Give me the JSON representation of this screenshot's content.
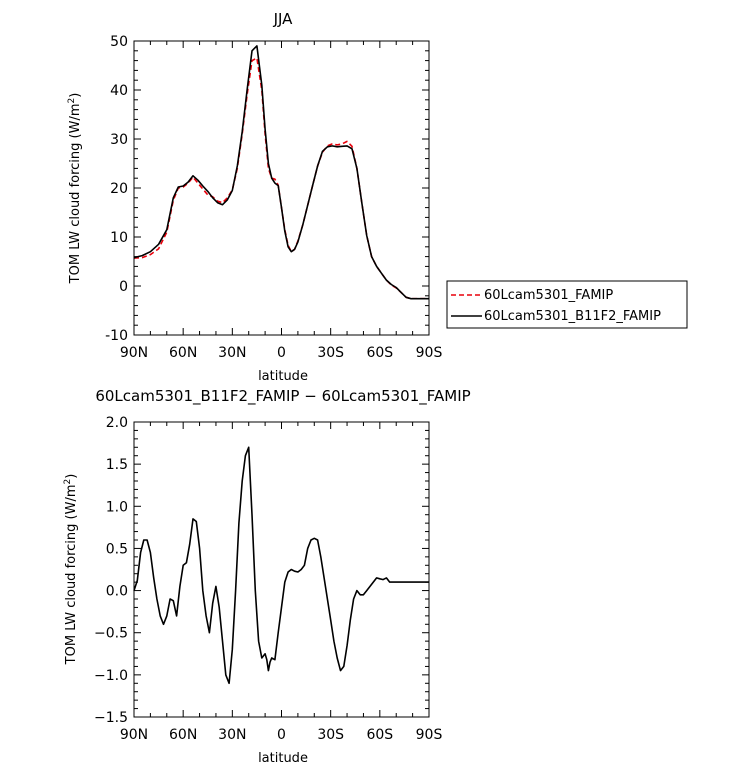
{
  "chart_data": [
    {
      "type": "line",
      "title": "JJA",
      "xlabel": "latitude",
      "ylabel": "TOM LW cloud forcing (W/m",
      "ylabel_sup": "2",
      "ylabel_close": ")",
      "xlim": [
        90,
        -90
      ],
      "ylim": [
        -10,
        50
      ],
      "yticks": [
        -10,
        0,
        10,
        20,
        30,
        40,
        50
      ],
      "xticks": [
        90,
        60,
        30,
        0,
        -30,
        -60,
        -90
      ],
      "xtick_labels": [
        "90N",
        "60N",
        "30N",
        "0",
        "30S",
        "60S",
        "90S"
      ],
      "grid": false,
      "legend_position": "right",
      "series": [
        {
          "name": "60Lcam5301_FAMIP",
          "color": "#e8000b",
          "dash": "dashed",
          "x": [
            90,
            85,
            80,
            75,
            70,
            66,
            63,
            60,
            57,
            54,
            51,
            48,
            45,
            42,
            39,
            36,
            33,
            30,
            27,
            24,
            21,
            18,
            15,
            12,
            10,
            8,
            6,
            4,
            2,
            0,
            -2,
            -4,
            -6,
            -8,
            -10,
            -13,
            -16,
            -19,
            -22,
            -25,
            -28,
            -31,
            -34,
            -37,
            -40,
            -43,
            -46,
            -49,
            -52,
            -55,
            -58,
            -61,
            -64,
            -67,
            -70,
            -73,
            -76,
            -79,
            -82,
            -85,
            -88,
            -90
          ],
          "y": [
            5.7,
            5.8,
            6.4,
            7.6,
            11.0,
            17.5,
            20.0,
            20.2,
            21.0,
            22.2,
            21.0,
            19.8,
            18.6,
            18.2,
            17.3,
            17.0,
            18.0,
            19.6,
            24.0,
            31.0,
            39.0,
            46.0,
            46.5,
            40.0,
            31.0,
            24.0,
            22.0,
            21.8,
            20.6,
            16.0,
            11.5,
            8.3,
            7.0,
            7.5,
            9.2,
            12.5,
            16.5,
            20.5,
            24.5,
            27.3,
            28.6,
            29.0,
            28.8,
            29.0,
            29.5,
            28.5,
            24.0,
            17.0,
            10.3,
            6.0,
            4.0,
            2.6,
            1.2,
            0.2,
            -0.4,
            -1.3,
            -2.3,
            -2.6,
            -2.6,
            -2.6,
            -2.6,
            -2.6
          ]
        },
        {
          "name": "60Lcam5301_B11F2_FAMIP",
          "color": "#000000",
          "dash": "solid",
          "x": [
            90,
            85,
            80,
            75,
            70,
            66,
            63,
            60,
            57,
            54,
            51,
            48,
            45,
            42,
            39,
            36,
            33,
            30,
            27,
            24,
            21,
            18,
            15,
            12,
            10,
            8,
            6,
            4,
            2,
            0,
            -2,
            -4,
            -6,
            -8,
            -10,
            -13,
            -16,
            -19,
            -22,
            -25,
            -28,
            -31,
            -34,
            -37,
            -40,
            -43,
            -46,
            -49,
            -52,
            -55,
            -58,
            -61,
            -64,
            -67,
            -70,
            -73,
            -76,
            -79,
            -82,
            -85,
            -88,
            -90
          ],
          "y": [
            5.8,
            6.2,
            7.0,
            8.5,
            11.5,
            18.0,
            20.2,
            20.4,
            21.2,
            22.5,
            21.6,
            20.4,
            19.3,
            18.0,
            17.0,
            16.6,
            17.6,
            19.5,
            24.5,
            31.5,
            40.0,
            48.0,
            49.0,
            41.0,
            32.0,
            25.0,
            22.0,
            21.0,
            20.5,
            16.0,
            11.2,
            8.0,
            7.0,
            7.5,
            9.0,
            12.5,
            16.5,
            20.5,
            24.5,
            27.5,
            28.4,
            28.6,
            28.4,
            28.5,
            28.6,
            28.0,
            24.0,
            17.0,
            10.3,
            6.0,
            4.0,
            2.6,
            1.2,
            0.3,
            -0.3,
            -1.3,
            -2.3,
            -2.6,
            -2.6,
            -2.6,
            -2.6,
            -2.6
          ]
        }
      ]
    },
    {
      "type": "line",
      "title": "60Lcam5301_B11F2_FAMIP − 60Lcam5301_FAMIP",
      "xlabel": "latitude",
      "ylabel": "TOM LW cloud forcing (W/m",
      "ylabel_sup": "2",
      "ylabel_close": ")",
      "xlim": [
        90,
        -90
      ],
      "ylim": [
        -1.5,
        2.0
      ],
      "yticks": [
        -1.5,
        -1.0,
        -0.5,
        0.0,
        0.5,
        1.0,
        1.5,
        2.0
      ],
      "ytick_labels": [
        "−1.5",
        "−1.0",
        "−0.5",
        "0.0",
        "0.5",
        "1.0",
        "1.5",
        "2.0"
      ],
      "xticks": [
        90,
        60,
        30,
        0,
        -30,
        -60,
        -90
      ],
      "xtick_labels": [
        "90N",
        "60N",
        "30N",
        "0",
        "30S",
        "60S",
        "90S"
      ],
      "grid": false,
      "series": [
        {
          "color": "#000000",
          "dash": "solid",
          "x": [
            90,
            88,
            86,
            84,
            82,
            80,
            78,
            76,
            74,
            72,
            70,
            68,
            66,
            64,
            62,
            60,
            58,
            56,
            54,
            52,
            50,
            48,
            46,
            44,
            42,
            40,
            38,
            36,
            34,
            32,
            30,
            28,
            26,
            24,
            22,
            20,
            18,
            16,
            14,
            12,
            10,
            9,
            8,
            7,
            6,
            4,
            2,
            0,
            -2,
            -4,
            -6,
            -8,
            -10,
            -12,
            -14,
            -16,
            -18,
            -20,
            -22,
            -24,
            -26,
            -28,
            -30,
            -32,
            -34,
            -36,
            -38,
            -40,
            -42,
            -44,
            -46,
            -48,
            -50,
            -52,
            -54,
            -56,
            -58,
            -60,
            -62,
            -64,
            -66,
            -68,
            -70,
            -72,
            -74,
            -76,
            -78,
            -80,
            -82,
            -84,
            -86,
            -88,
            -90
          ],
          "y": [
            0.0,
            0.12,
            0.45,
            0.6,
            0.6,
            0.45,
            0.15,
            -0.1,
            -0.3,
            -0.4,
            -0.3,
            -0.1,
            -0.12,
            -0.3,
            0.05,
            0.3,
            0.33,
            0.55,
            0.85,
            0.82,
            0.5,
            0.0,
            -0.3,
            -0.5,
            -0.15,
            0.05,
            -0.2,
            -0.6,
            -1.0,
            -1.1,
            -0.7,
            0.0,
            0.8,
            1.3,
            1.6,
            1.7,
            0.9,
            0.0,
            -0.6,
            -0.8,
            -0.75,
            -0.82,
            -0.95,
            -0.85,
            -0.8,
            -0.82,
            -0.5,
            -0.2,
            0.1,
            0.22,
            0.25,
            0.23,
            0.22,
            0.25,
            0.3,
            0.5,
            0.6,
            0.62,
            0.6,
            0.4,
            0.15,
            -0.1,
            -0.35,
            -0.6,
            -0.8,
            -0.95,
            -0.9,
            -0.65,
            -0.35,
            -0.1,
            0.0,
            -0.05,
            -0.05,
            0.0,
            0.05,
            0.1,
            0.15,
            0.14,
            0.13,
            0.15,
            0.1,
            0.1,
            0.1,
            0.1,
            0.1,
            0.1,
            0.1,
            0.1,
            0.1,
            0.1,
            0.1,
            0.1,
            0.1
          ]
        }
      ]
    }
  ]
}
